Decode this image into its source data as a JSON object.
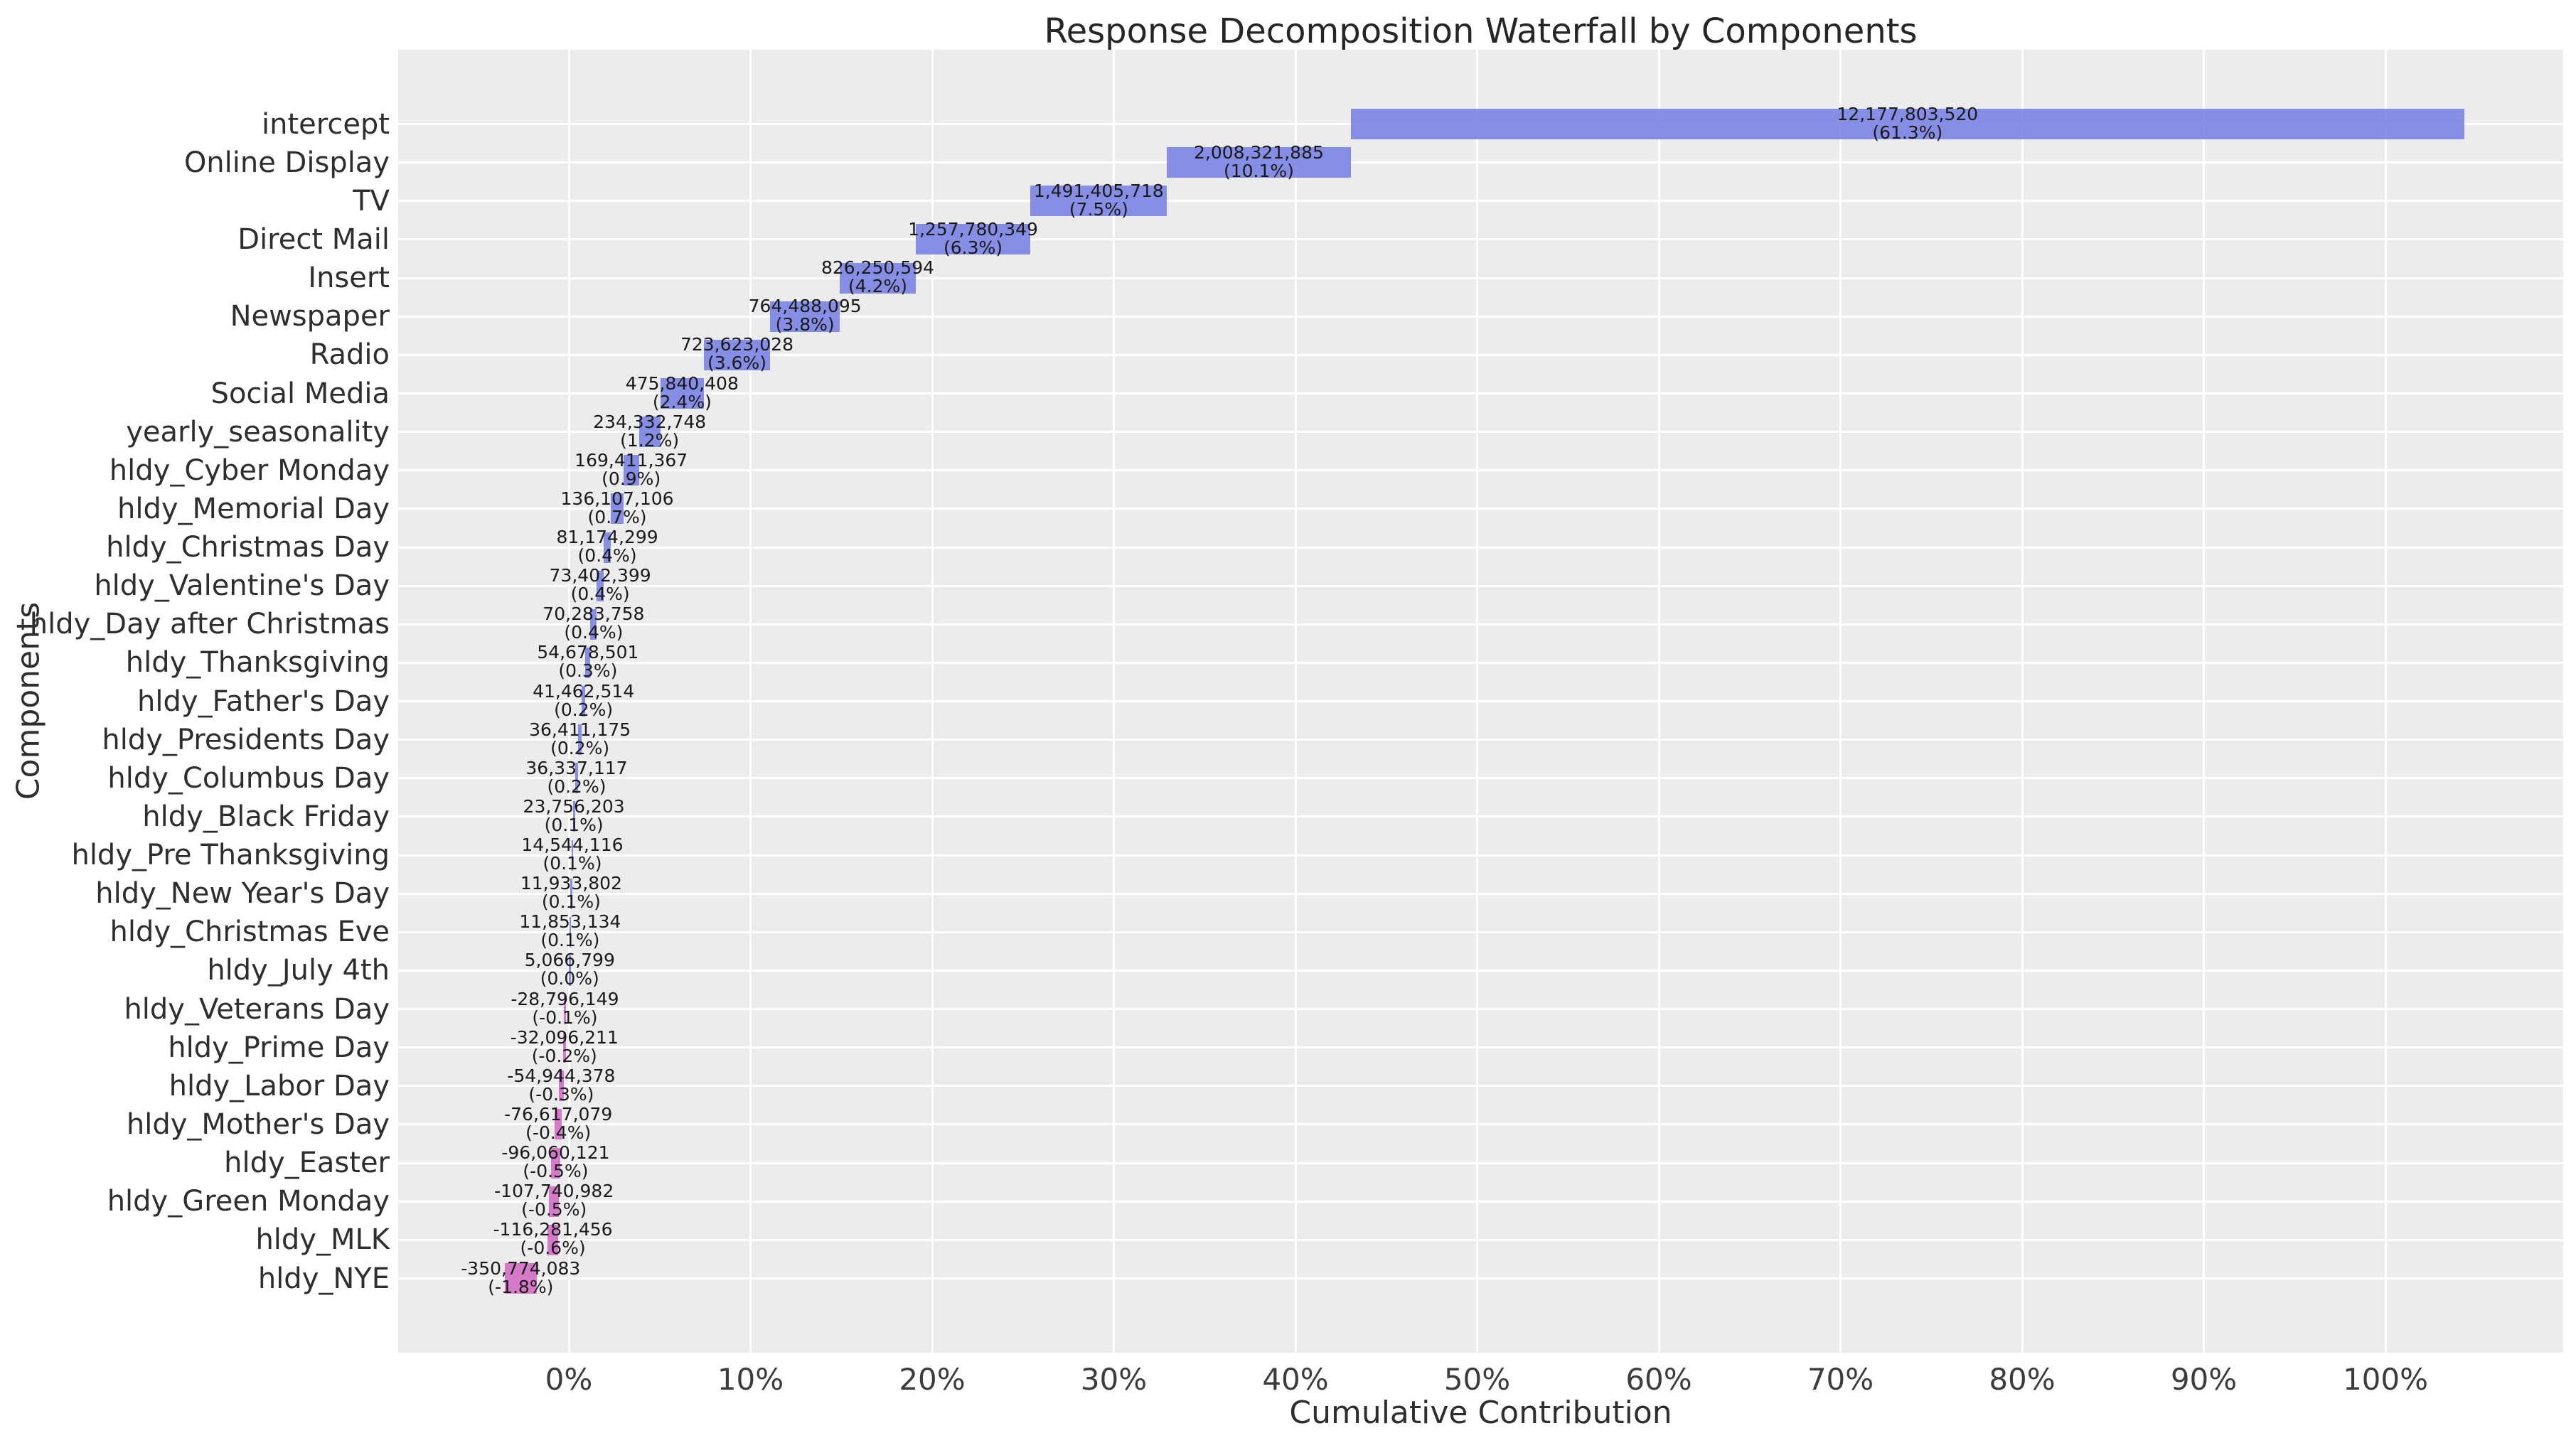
{
  "title": "Response Decomposition Waterfall by Components",
  "chart_data": {
    "type": "bar",
    "subtype": "waterfall",
    "title": "Response Decomposition Waterfall by Components",
    "xlabel": "Cumulative Contribution",
    "ylabel": "Components",
    "x_ticks": [
      {
        "pct": 0,
        "label": "0%"
      },
      {
        "pct": 10,
        "label": "10%"
      },
      {
        "pct": 20,
        "label": "20%"
      },
      {
        "pct": 30,
        "label": "30%"
      },
      {
        "pct": 40,
        "label": "40%"
      },
      {
        "pct": 50,
        "label": "50%"
      },
      {
        "pct": 60,
        "label": "60%"
      },
      {
        "pct": 70,
        "label": "70%"
      },
      {
        "pct": 80,
        "label": "80%"
      },
      {
        "pct": 90,
        "label": "90%"
      },
      {
        "pct": 100,
        "label": "100%"
      }
    ],
    "xlim_pct": [
      -9.4,
      109.8
    ],
    "grid": true,
    "legend": false,
    "colors": {
      "positive_bar": "#7880e2",
      "negative_bar": "#d26ac3",
      "plot_background": "#ececec",
      "gridline": "#ffffff",
      "text": "#262626"
    },
    "items": [
      {
        "label": "intercept",
        "value": 12177803520,
        "value_label": "12,177,803,520",
        "pct_label": "(61.3%)"
      },
      {
        "label": "Online Display",
        "value": 2008321885,
        "value_label": "2,008,321,885",
        "pct_label": "(10.1%)"
      },
      {
        "label": "TV",
        "value": 1491405718,
        "value_label": "1,491,405,718",
        "pct_label": "(7.5%)"
      },
      {
        "label": "Direct Mail",
        "value": 1257780349,
        "value_label": "1,257,780,349",
        "pct_label": "(6.3%)"
      },
      {
        "label": "Insert",
        "value": 826250594,
        "value_label": "826,250,594",
        "pct_label": "(4.2%)"
      },
      {
        "label": "Newspaper",
        "value": 764488095,
        "value_label": "764,488,095",
        "pct_label": "(3.8%)"
      },
      {
        "label": "Radio",
        "value": 723623028,
        "value_label": "723,623,028",
        "pct_label": "(3.6%)"
      },
      {
        "label": "Social Media",
        "value": 475840408,
        "value_label": "475,840,408",
        "pct_label": "(2.4%)"
      },
      {
        "label": "yearly_seasonality",
        "value": 234332748,
        "value_label": "234,332,748",
        "pct_label": "(1.2%)"
      },
      {
        "label": "hldy_Cyber Monday",
        "value": 169411367,
        "value_label": "169,411,367",
        "pct_label": "(0.9%)"
      },
      {
        "label": "hldy_Memorial Day",
        "value": 136107106,
        "value_label": "136,107,106",
        "pct_label": "(0.7%)"
      },
      {
        "label": "hldy_Christmas Day",
        "value": 81174299,
        "value_label": "81,174,299",
        "pct_label": "(0.4%)"
      },
      {
        "label": "hldy_Valentine's Day",
        "value": 73402399,
        "value_label": "73,402,399",
        "pct_label": "(0.4%)"
      },
      {
        "label": "hldy_Day after Christmas",
        "value": 70283758,
        "value_label": "70,283,758",
        "pct_label": "(0.4%)"
      },
      {
        "label": "hldy_Thanksgiving",
        "value": 54678501,
        "value_label": "54,678,501",
        "pct_label": "(0.3%)"
      },
      {
        "label": "hldy_Father's Day",
        "value": 41462514,
        "value_label": "41,462,514",
        "pct_label": "(0.2%)"
      },
      {
        "label": "hldy_Presidents Day",
        "value": 36411175,
        "value_label": "36,411,175",
        "pct_label": "(0.2%)"
      },
      {
        "label": "hldy_Columbus Day",
        "value": 36337117,
        "value_label": "36,337,117",
        "pct_label": "(0.2%)"
      },
      {
        "label": "hldy_Black Friday",
        "value": 23756203,
        "value_label": "23,756,203",
        "pct_label": "(0.1%)"
      },
      {
        "label": "hldy_Pre Thanksgiving",
        "value": 14544116,
        "value_label": "14,544,116",
        "pct_label": "(0.1%)"
      },
      {
        "label": "hldy_New Year's Day",
        "value": 11933802,
        "value_label": "11,933,802",
        "pct_label": "(0.1%)"
      },
      {
        "label": "hldy_Christmas Eve",
        "value": 11853134,
        "value_label": "11,853,134",
        "pct_label": "(0.1%)"
      },
      {
        "label": "hldy_July 4th",
        "value": 5066799,
        "value_label": "5,066,799",
        "pct_label": "(0.0%)"
      },
      {
        "label": "hldy_Veterans Day",
        "value": -28796149,
        "value_label": "-28,796,149",
        "pct_label": "(-0.1%)"
      },
      {
        "label": "hldy_Prime Day",
        "value": -32096211,
        "value_label": "-32,096,211",
        "pct_label": "(-0.2%)"
      },
      {
        "label": "hldy_Labor Day",
        "value": -54944378,
        "value_label": "-54,944,378",
        "pct_label": "(-0.3%)"
      },
      {
        "label": "hldy_Mother's Day",
        "value": -76617079,
        "value_label": "-76,617,079",
        "pct_label": "(-0.4%)"
      },
      {
        "label": "hldy_Easter",
        "value": -96060121,
        "value_label": "-96,060,121",
        "pct_label": "(-0.5%)"
      },
      {
        "label": "hldy_Green Monday",
        "value": -107740982,
        "value_label": "-107,740,982",
        "pct_label": "(-0.5%)"
      },
      {
        "label": "hldy_MLK",
        "value": -116281456,
        "value_label": "-116,281,456",
        "pct_label": "(-0.6%)"
      },
      {
        "label": "hldy_NYE",
        "value": -350774083,
        "value_label": "-350,774,083",
        "pct_label": "(-1.8%)"
      }
    ]
  }
}
